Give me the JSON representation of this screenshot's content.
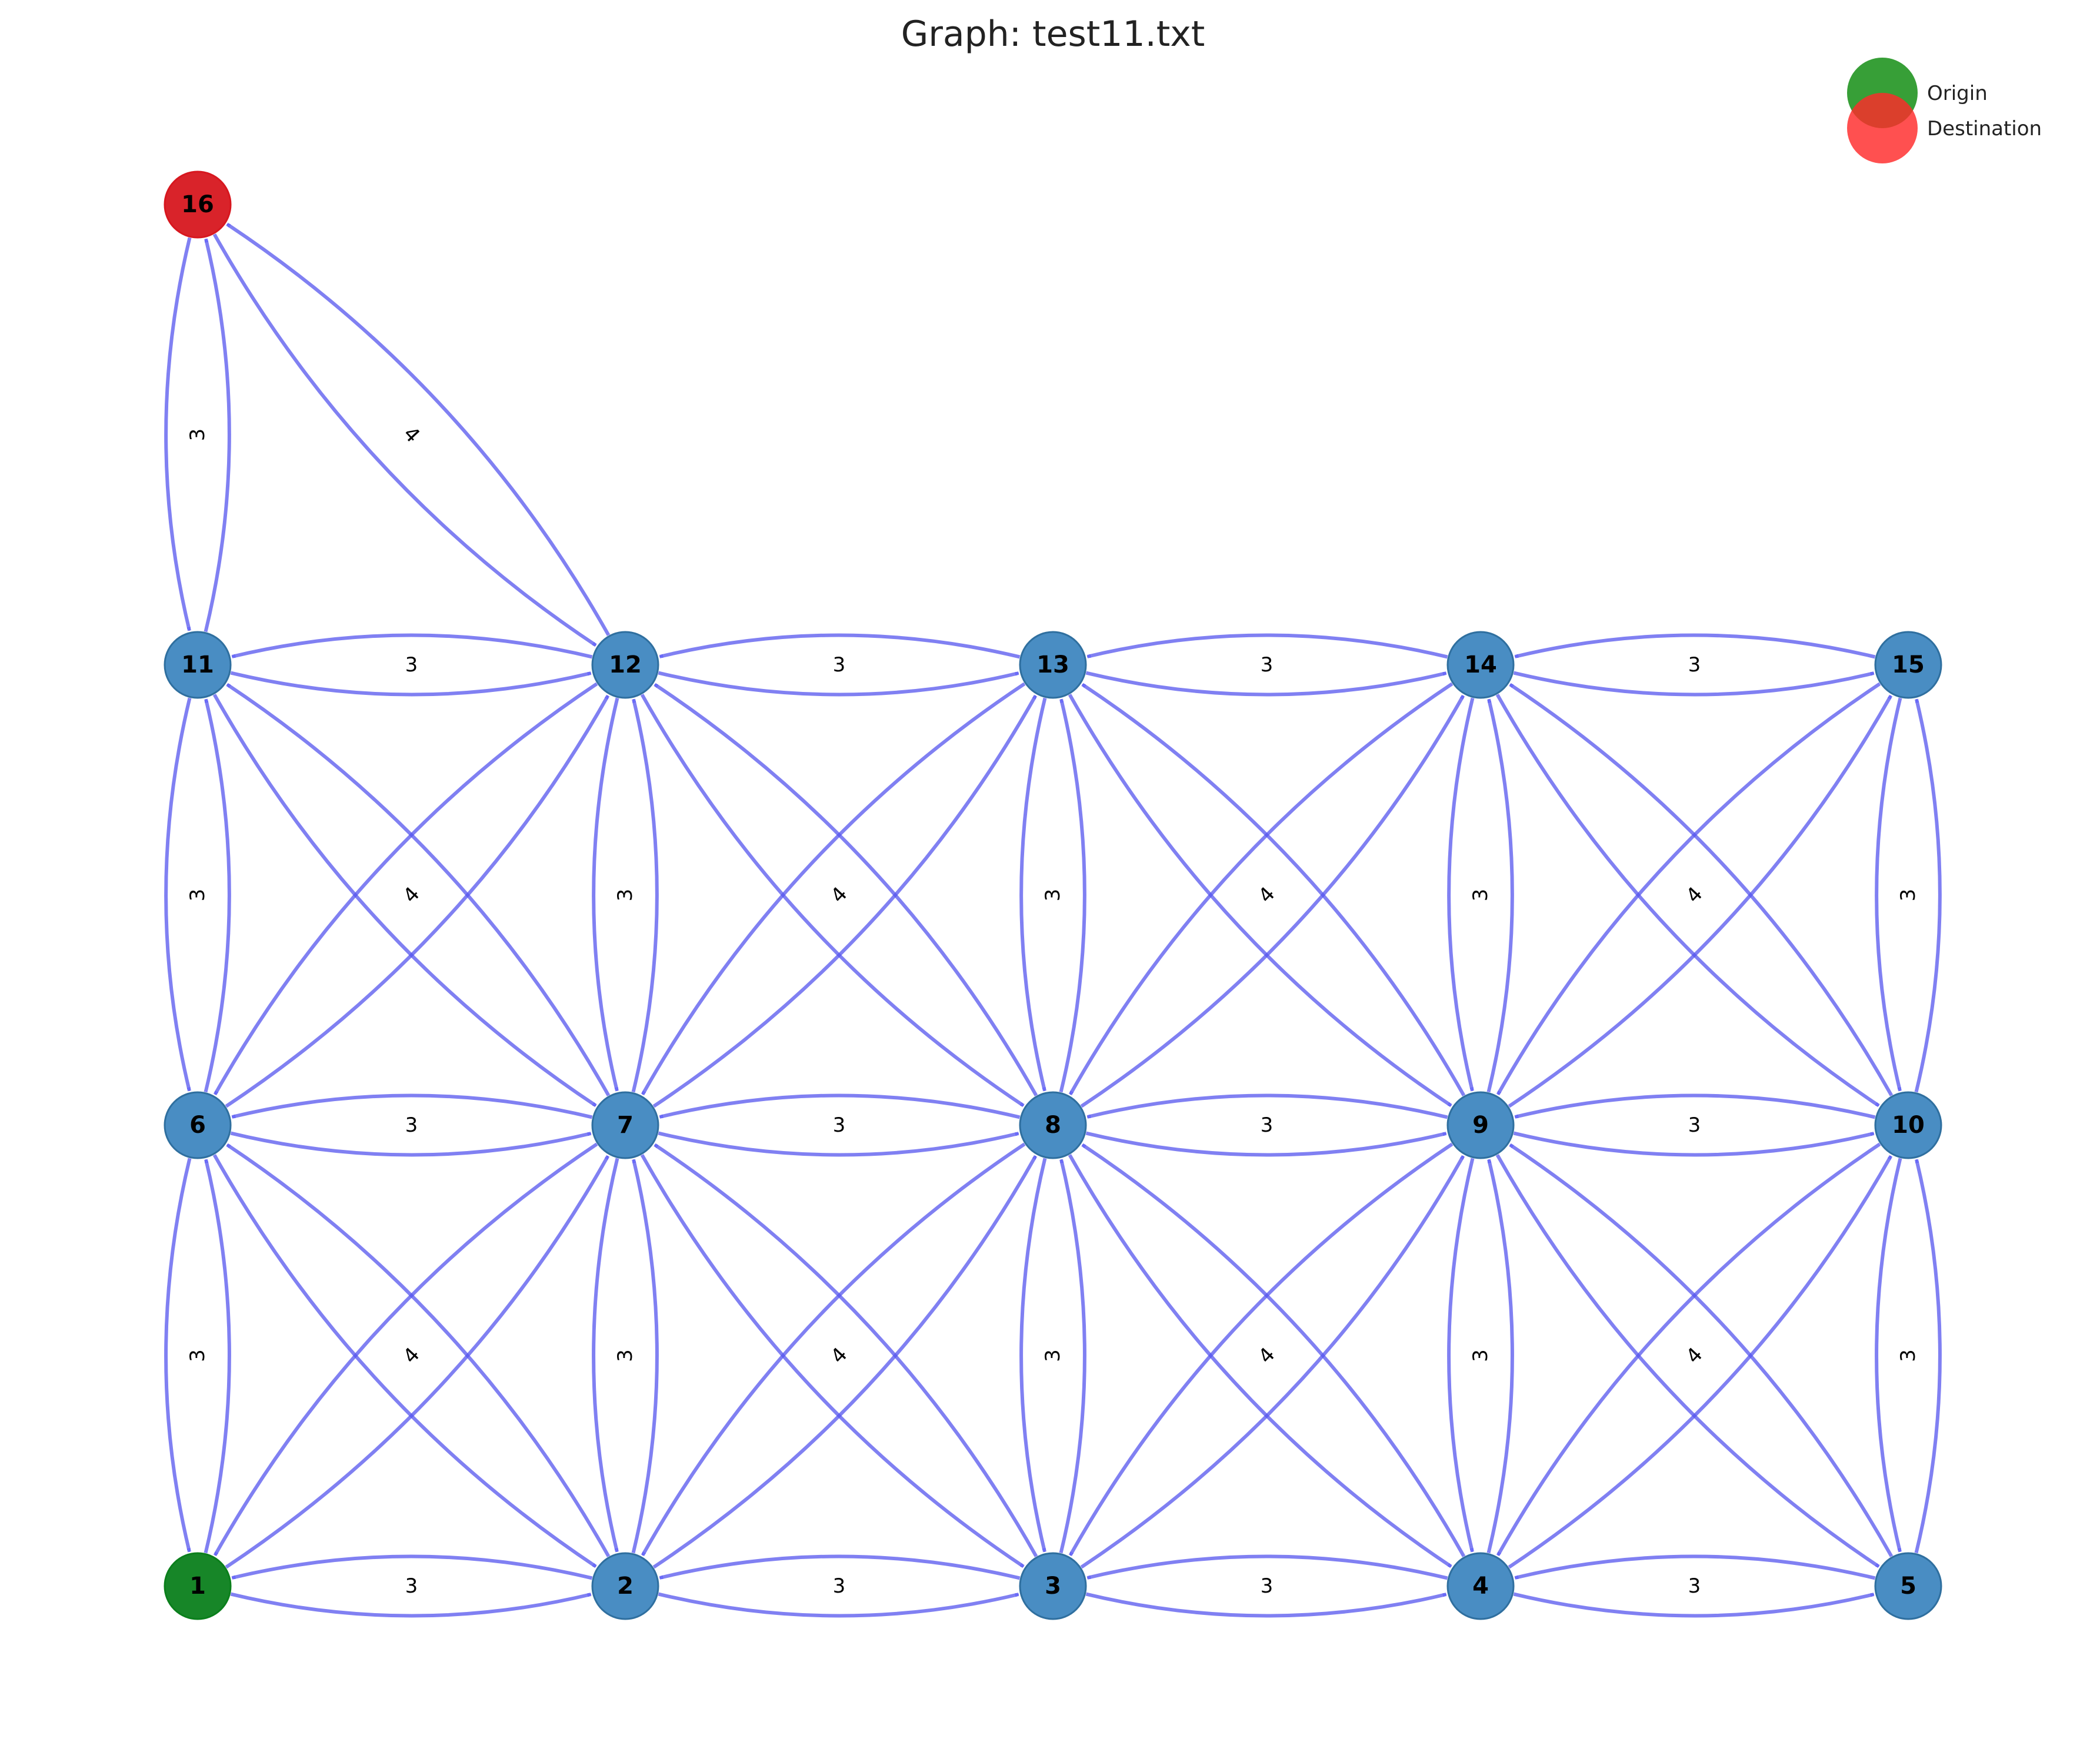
{
  "title": "Graph: test11.txt",
  "legend": [
    {
      "label": "Origin",
      "color": "#0b8a0b"
    },
    {
      "label": "Destination",
      "color": "#ff2a2a"
    }
  ],
  "colors": {
    "node": "#3f87c0",
    "node_stroke": "#2f6f9f",
    "origin": "#0b7f1c",
    "destination": "#d7171f",
    "edge": "#5555ee"
  },
  "nodes": [
    {
      "id": "1",
      "role": "origin"
    },
    {
      "id": "2",
      "role": "normal"
    },
    {
      "id": "3",
      "role": "normal"
    },
    {
      "id": "4",
      "role": "normal"
    },
    {
      "id": "5",
      "role": "normal"
    },
    {
      "id": "6",
      "role": "normal"
    },
    {
      "id": "7",
      "role": "normal"
    },
    {
      "id": "8",
      "role": "normal"
    },
    {
      "id": "9",
      "role": "normal"
    },
    {
      "id": "10",
      "role": "normal"
    },
    {
      "id": "11",
      "role": "normal"
    },
    {
      "id": "12",
      "role": "normal"
    },
    {
      "id": "13",
      "role": "normal"
    },
    {
      "id": "14",
      "role": "normal"
    },
    {
      "id": "15",
      "role": "normal"
    },
    {
      "id": "16",
      "role": "destination"
    }
  ],
  "edges": [
    {
      "a": "1",
      "b": "2",
      "weight": "3"
    },
    {
      "a": "2",
      "b": "3",
      "weight": "3"
    },
    {
      "a": "3",
      "b": "4",
      "weight": "3"
    },
    {
      "a": "4",
      "b": "5",
      "weight": "3"
    },
    {
      "a": "6",
      "b": "7",
      "weight": "3"
    },
    {
      "a": "7",
      "b": "8",
      "weight": "3"
    },
    {
      "a": "8",
      "b": "9",
      "weight": "3"
    },
    {
      "a": "9",
      "b": "10",
      "weight": "3"
    },
    {
      "a": "11",
      "b": "12",
      "weight": "3"
    },
    {
      "a": "12",
      "b": "13",
      "weight": "3"
    },
    {
      "a": "13",
      "b": "14",
      "weight": "3"
    },
    {
      "a": "14",
      "b": "15",
      "weight": "3"
    },
    {
      "a": "1",
      "b": "6",
      "weight": "3"
    },
    {
      "a": "2",
      "b": "7",
      "weight": "3"
    },
    {
      "a": "3",
      "b": "8",
      "weight": "3"
    },
    {
      "a": "4",
      "b": "9",
      "weight": "3"
    },
    {
      "a": "5",
      "b": "10",
      "weight": "3"
    },
    {
      "a": "6",
      "b": "11",
      "weight": "3"
    },
    {
      "a": "7",
      "b": "12",
      "weight": "3"
    },
    {
      "a": "8",
      "b": "13",
      "weight": "3"
    },
    {
      "a": "9",
      "b": "14",
      "weight": "3"
    },
    {
      "a": "10",
      "b": "15",
      "weight": "3"
    },
    {
      "a": "11",
      "b": "16",
      "weight": "3"
    },
    {
      "a": "1",
      "b": "7",
      "weight": "4"
    },
    {
      "a": "2",
      "b": "6",
      "weight": ""
    },
    {
      "a": "2",
      "b": "8",
      "weight": "4"
    },
    {
      "a": "3",
      "b": "7",
      "weight": ""
    },
    {
      "a": "3",
      "b": "9",
      "weight": "4"
    },
    {
      "a": "4",
      "b": "8",
      "weight": ""
    },
    {
      "a": "4",
      "b": "10",
      "weight": "4"
    },
    {
      "a": "5",
      "b": "9",
      "weight": ""
    },
    {
      "a": "6",
      "b": "12",
      "weight": "4"
    },
    {
      "a": "7",
      "b": "11",
      "weight": ""
    },
    {
      "a": "7",
      "b": "13",
      "weight": "4"
    },
    {
      "a": "8",
      "b": "12",
      "weight": ""
    },
    {
      "a": "8",
      "b": "14",
      "weight": "4"
    },
    {
      "a": "9",
      "b": "13",
      "weight": ""
    },
    {
      "a": "9",
      "b": "15",
      "weight": "4"
    },
    {
      "a": "10",
      "b": "14",
      "weight": ""
    },
    {
      "a": "12",
      "b": "16",
      "weight": "4"
    }
  ]
}
